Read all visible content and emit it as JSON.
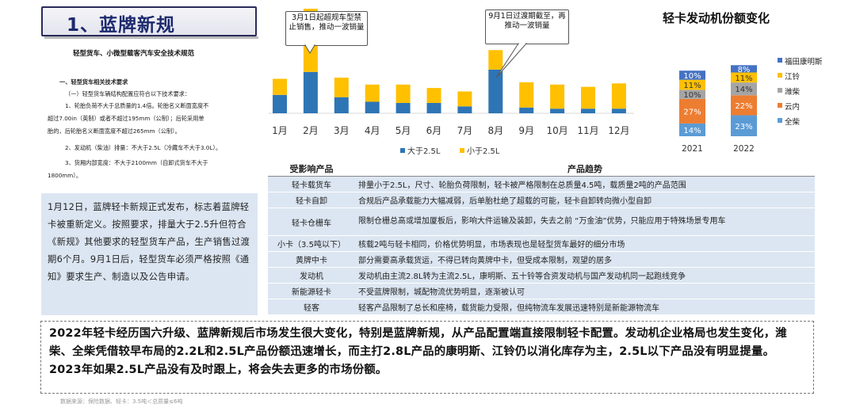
{
  "title": "1、蓝牌新规",
  "document": {
    "title": "轻型货车、小微型载客汽车安全技术规范",
    "section": "一、轻型货车相关技术要求",
    "lines": [
      "（一）轻型货车辆结构配置应符合以下技术要求：",
      "1、轮胎负荷不大于总质量的1.4倍。轮胎名义断面宽度不",
      "超过7.00in（英制）或者不超过195mm（公制）；后轮采用单",
      "胎的，后轮胎名义断面宽度不超过265mm（公制）。",
      "2、发动机（柴油）排量：不大于2.5L（冷藏车不大于3.0L）。",
      "3、货厢内部宽度：不大于2100mm（自卸式货车不大于",
      "1800mm）。"
    ]
  },
  "blue_box_text": "1月12日，蓝牌轻卡新规正式发布，标志着蓝牌轻卡被重新定义。按照要求，排量大于2.5升但符合《新规》其他要求的轻型货车产品，生产销售过渡期6个月。9月1日后，轻型货车必须严格按照《通知》要求生产、制造以及公告申请。",
  "callouts": {
    "march": "3月1日起超规车型禁止销售，推动一波销量",
    "september": "9月1日过渡期截至，再推动一波销量"
  },
  "colors": {
    "blue": "#2e75b6",
    "gold": "#ffc000",
    "orange": "#ed7d31",
    "gray": "#a5a5a5",
    "light_blue": "#5b9bd5",
    "dark_blue": "#4472c4"
  },
  "chart_data": [
    {
      "type": "bar",
      "stacked": true,
      "categories": [
        "1月",
        "2月",
        "3月",
        "4月",
        "5月",
        "6月",
        "7月",
        "8月",
        "9月",
        "10月",
        "11月",
        "12月"
      ],
      "series": [
        {
          "name": "大于2.5L",
          "values": [
            16,
            36,
            14,
            10,
            9,
            9,
            6,
            38,
            5,
            4,
            4,
            4
          ],
          "color": "#2e75b6"
        },
        {
          "name": "小于2.5L",
          "values": [
            14,
            55,
            17,
            15,
            16,
            13,
            13,
            17,
            22,
            21,
            19,
            22
          ],
          "color": "#ffc000"
        }
      ],
      "title": "",
      "legend": "bottom",
      "axis_visible": false
    },
    {
      "type": "bar",
      "stacked": true,
      "percent": true,
      "title": "轻卡发动机份额变化",
      "categories": [
        "2021",
        "2022"
      ],
      "series": [
        {
          "name": "全柴",
          "values": [
            14,
            23
          ],
          "color": "#5b9bd5"
        },
        {
          "name": "云内",
          "values": [
            27,
            22
          ],
          "color": "#ed7d31"
        },
        {
          "name": "潍柴",
          "values": [
            10,
            14
          ],
          "color": "#a5a5a5"
        },
        {
          "name": "江铃",
          "values": [
            11,
            11
          ],
          "color": "#ffc000"
        },
        {
          "name": "福田康明斯",
          "values": [
            10,
            8
          ],
          "color": "#4472c4"
        }
      ],
      "labels": {
        "2021": [
          "14%",
          "27%",
          "10%",
          "11%",
          "10%"
        ],
        "2022": [
          "23%",
          "22%",
          "14%",
          "11%",
          "8%"
        ]
      },
      "legend": "right"
    }
  ],
  "table": {
    "headers": [
      "受影响产品",
      "产品趋势"
    ],
    "rows": [
      [
        "轻卡载货车",
        "排量小于2.5L，尺寸、轮胎负荷限制，轻卡被严格限制在总质量4.5吨，载质量2吨的产品范围"
      ],
      [
        "轻卡自卸",
        "合规后产品承载能力大幅减弱，后单胎杜绝了超载的可能，轻卡自卸转向微小型自卸"
      ],
      [
        "轻卡仓栅车",
        "限制仓栅总高或增加厦板后，影响大件运输及装卸，失去之前 “万金油”优势，只能应用于特殊场景专用车"
      ],
      [
        "小卡（3.5吨以下）",
        "核载2吨与轻卡相同，价格优势明显，市场表现也是轻型货车最好的细分市场"
      ],
      [
        "黄牌中卡",
        "部分需要高承载货运，不得已转向黄牌中卡，但受成本限制，观望的居多"
      ],
      [
        "发动机",
        "发动机由主流2.8L转为主流2.5L，康明斯、五十铃等合资发动机与国产发动机同一起跑线竞争"
      ],
      [
        "新能源轻卡",
        "不受蓝牌限制，城配物流优势明显，逐渐被认可"
      ],
      [
        "轻客",
        "轻客产品限制了总长和座椅，载货能力受限，但纯物流车发展迅速特别是新能源物流车"
      ]
    ]
  },
  "summary": "2022年轻卡经历国六升级、蓝牌新规后市场发生很大变化，特别是蓝牌新规，从产品配置端直接限制轻卡配置。发动机企业格局也发生变化，潍柴、全柴凭借较早布局的2.2L和2.5L产品份额迅速增长，而主打2.8L产品的康明斯、江铃仍以消化库存为主，2.5L以下产品没有明显提量。2023年如果2.5L产品没有及时跟上，将会失去更多的市场份额。",
  "footer": "数据来源：保险数据、轻卡：3.5吨＜总质量≤6吨"
}
